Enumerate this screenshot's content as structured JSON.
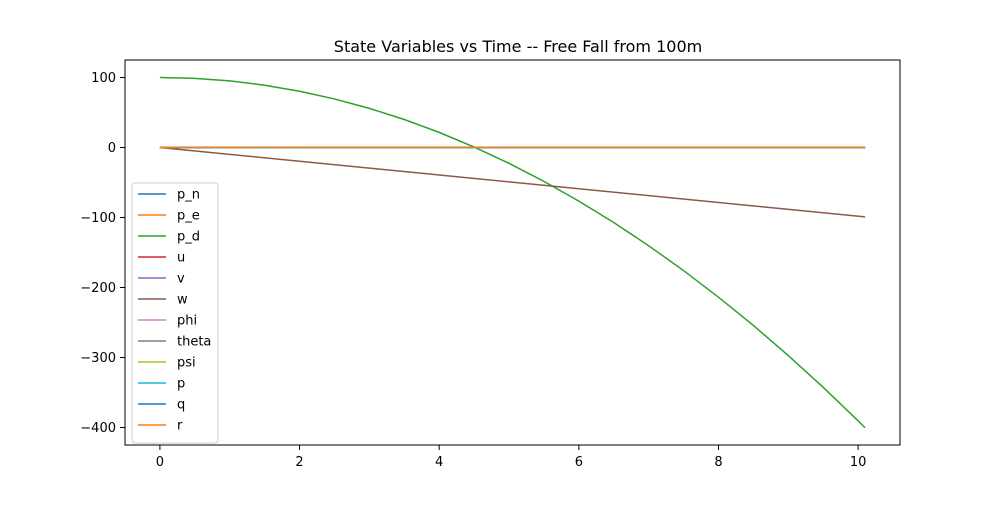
{
  "chart_data": {
    "type": "line",
    "title": "State Variables vs Time -- Free Fall from 100m",
    "xlabel": "",
    "ylabel": "",
    "xlim": [
      -0.5,
      10.6
    ],
    "ylim": [
      -425,
      125
    ],
    "xticks": [
      0,
      2,
      4,
      6,
      8,
      10
    ],
    "xtick_labels": [
      "0",
      "2",
      "4",
      "6",
      "8",
      "10"
    ],
    "yticks": [
      100,
      0,
      -100,
      -200,
      -300,
      -400
    ],
    "ytick_labels": [
      "100",
      "0",
      "−100",
      "−200",
      "−300",
      "−400"
    ],
    "grid": false,
    "legend_position": "lower-left",
    "series": [
      {
        "name": "p_n",
        "color": "#1f77b4",
        "x": [
          0,
          10.1
        ],
        "y": [
          0,
          0
        ]
      },
      {
        "name": "p_e",
        "color": "#ff7f0e",
        "x": [
          0,
          10.1
        ],
        "y": [
          0,
          0
        ]
      },
      {
        "name": "p_d",
        "color": "#2ca02c",
        "x": [
          0,
          0.5,
          1,
          1.5,
          2,
          2.5,
          3,
          3.5,
          4,
          4.5,
          5,
          5.5,
          6,
          6.5,
          7,
          7.5,
          8,
          8.5,
          9,
          9.5,
          10,
          10.1
        ],
        "y": [
          100,
          98.8,
          95.1,
          89.0,
          80.4,
          69.4,
          55.9,
          40.0,
          21.6,
          0.7,
          -22.6,
          -48.4,
          -76.6,
          -107.2,
          -140.3,
          -175.8,
          -213.8,
          -254.2,
          -297.2,
          -342.6,
          -390.5,
          -400.4
        ]
      },
      {
        "name": "u",
        "color": "#d62728",
        "x": [
          0,
          10.1
        ],
        "y": [
          0,
          0
        ]
      },
      {
        "name": "v",
        "color": "#9467bd",
        "x": [
          0,
          10.1
        ],
        "y": [
          0,
          0
        ]
      },
      {
        "name": "w",
        "color": "#8c564b",
        "x": [
          0,
          10.1
        ],
        "y": [
          0,
          -99.1
        ]
      },
      {
        "name": "phi",
        "color": "#e377c2",
        "x": [
          0,
          10.1
        ],
        "y": [
          0,
          0
        ]
      },
      {
        "name": "theta",
        "color": "#7f7f7f",
        "x": [
          0,
          10.1
        ],
        "y": [
          0,
          0
        ]
      },
      {
        "name": "psi",
        "color": "#bcbd22",
        "x": [
          0,
          10.1
        ],
        "y": [
          0,
          0
        ]
      },
      {
        "name": "p",
        "color": "#17becf",
        "x": [
          0,
          10.1
        ],
        "y": [
          0,
          0
        ]
      },
      {
        "name": "q",
        "color": "#1f77b4",
        "x": [
          0,
          10.1
        ],
        "y": [
          0,
          0
        ]
      },
      {
        "name": "r",
        "color": "#ff7f0e",
        "x": [
          0,
          10.1
        ],
        "y": [
          0,
          0
        ]
      }
    ]
  }
}
